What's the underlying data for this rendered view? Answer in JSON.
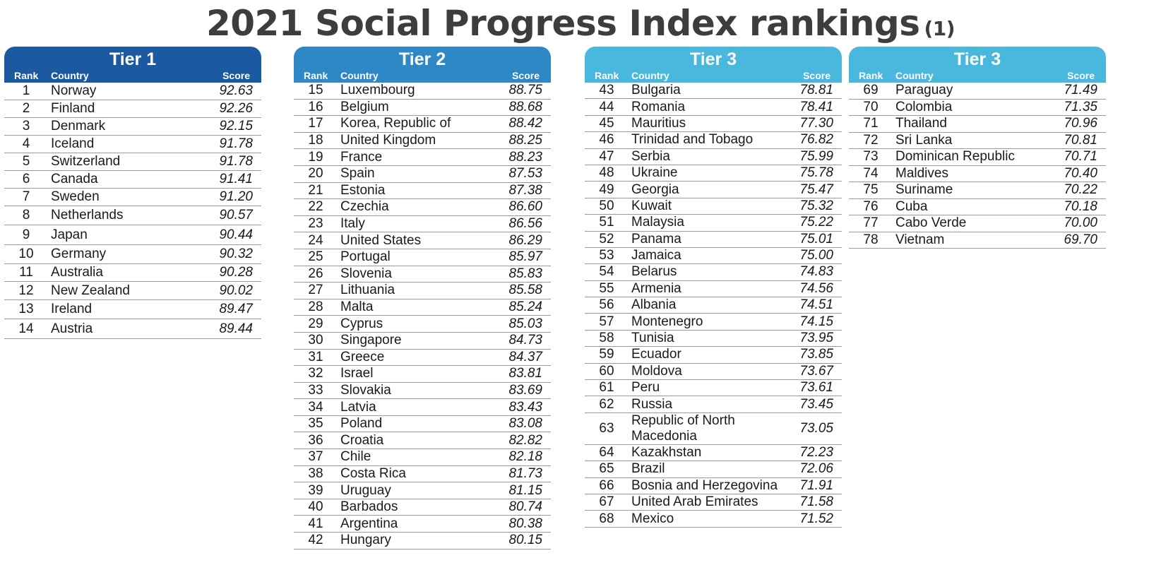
{
  "title": "2021 Social Progress Index rankings",
  "title_note": "(1)",
  "column_labels": {
    "rank": "Rank",
    "country": "Country",
    "score": "Score"
  },
  "tiers": [
    {
      "name": "Tier 1",
      "color": "#1b5aa0",
      "rows": [
        {
          "rank": "1",
          "country": "Norway",
          "score": "92.63"
        },
        {
          "rank": "2",
          "country": "Finland",
          "score": "92.26"
        },
        {
          "rank": "3",
          "country": "Denmark",
          "score": "92.15"
        },
        {
          "rank": "4",
          "country": "Iceland",
          "score": "91.78"
        },
        {
          "rank": "5",
          "country": "Switzerland",
          "score": "91.78"
        },
        {
          "rank": "6",
          "country": "Canada",
          "score": "91.41"
        },
        {
          "rank": "7",
          "country": "Sweden",
          "score": "91.20"
        },
        {
          "rank": "8",
          "country": "Netherlands",
          "score": "90.57"
        },
        {
          "rank": "9",
          "country": "Japan",
          "score": "90.44"
        },
        {
          "rank": "10",
          "country": "Germany",
          "score": "90.32"
        },
        {
          "rank": "11",
          "country": "Australia",
          "score": "90.28"
        },
        {
          "rank": "12",
          "country": "New Zealand",
          "score": "90.02"
        },
        {
          "rank": "13",
          "country": "Ireland",
          "score": "89.47"
        },
        {
          "rank": "14",
          "country": "Austria",
          "score": "89.44"
        }
      ]
    },
    {
      "name": "Tier 2",
      "color": "#2f88c6",
      "rows": [
        {
          "rank": "15",
          "country": "Luxembourg",
          "score": "88.75"
        },
        {
          "rank": "16",
          "country": "Belgium",
          "score": "88.68"
        },
        {
          "rank": "17",
          "country": "Korea, Republic of",
          "score": "88.42"
        },
        {
          "rank": "18",
          "country": "United Kingdom",
          "score": "88.25"
        },
        {
          "rank": "19",
          "country": "France",
          "score": "88.23"
        },
        {
          "rank": "20",
          "country": "Spain",
          "score": "87.53"
        },
        {
          "rank": "21",
          "country": "Estonia",
          "score": "87.38"
        },
        {
          "rank": "22",
          "country": "Czechia",
          "score": "86.60"
        },
        {
          "rank": "23",
          "country": "Italy",
          "score": "86.56"
        },
        {
          "rank": "24",
          "country": "United States",
          "score": "86.29"
        },
        {
          "rank": "25",
          "country": "Portugal",
          "score": "85.97"
        },
        {
          "rank": "26",
          "country": "Slovenia",
          "score": "85.83"
        },
        {
          "rank": "27",
          "country": "Lithuania",
          "score": "85.58"
        },
        {
          "rank": "28",
          "country": "Malta",
          "score": "85.24"
        },
        {
          "rank": "29",
          "country": "Cyprus",
          "score": "85.03"
        },
        {
          "rank": "30",
          "country": "Singapore",
          "score": "84.73"
        },
        {
          "rank": "31",
          "country": "Greece",
          "score": "84.37"
        },
        {
          "rank": "32",
          "country": "Israel",
          "score": "83.81"
        },
        {
          "rank": "33",
          "country": "Slovakia",
          "score": "83.69"
        },
        {
          "rank": "34",
          "country": "Latvia",
          "score": "83.43"
        },
        {
          "rank": "35",
          "country": "Poland",
          "score": "83.08"
        },
        {
          "rank": "36",
          "country": "Croatia",
          "score": "82.82"
        },
        {
          "rank": "37",
          "country": "Chile",
          "score": "82.18"
        },
        {
          "rank": "38",
          "country": "Costa Rica",
          "score": "81.73"
        },
        {
          "rank": "39",
          "country": "Uruguay",
          "score": "81.15"
        },
        {
          "rank": "40",
          "country": "Barbados",
          "score": "80.74"
        },
        {
          "rank": "41",
          "country": "Argentina",
          "score": "80.38"
        },
        {
          "rank": "42",
          "country": "Hungary",
          "score": "80.15"
        }
      ]
    },
    {
      "name": "Tier 3",
      "color": "#4ab8dc",
      "rows": [
        {
          "rank": "43",
          "country": "Bulgaria",
          "score": "78.81"
        },
        {
          "rank": "44",
          "country": "Romania",
          "score": "78.41"
        },
        {
          "rank": "45",
          "country": "Mauritius",
          "score": "77.30"
        },
        {
          "rank": "46",
          "country": "Trinidad and Tobago",
          "score": "76.82"
        },
        {
          "rank": "47",
          "country": "Serbia",
          "score": "75.99"
        },
        {
          "rank": "48",
          "country": "Ukraine",
          "score": "75.78"
        },
        {
          "rank": "49",
          "country": "Georgia",
          "score": "75.47"
        },
        {
          "rank": "50",
          "country": "Kuwait",
          "score": "75.32"
        },
        {
          "rank": "51",
          "country": "Malaysia",
          "score": "75.22"
        },
        {
          "rank": "52",
          "country": "Panama",
          "score": "75.01"
        },
        {
          "rank": "53",
          "country": "Jamaica",
          "score": "75.00"
        },
        {
          "rank": "54",
          "country": "Belarus",
          "score": "74.83"
        },
        {
          "rank": "55",
          "country": "Armenia",
          "score": "74.56"
        },
        {
          "rank": "56",
          "country": "Albania",
          "score": "74.51"
        },
        {
          "rank": "57",
          "country": "Montenegro",
          "score": "74.15"
        },
        {
          "rank": "58",
          "country": "Tunisia",
          "score": "73.95"
        },
        {
          "rank": "59",
          "country": "Ecuador",
          "score": "73.85"
        },
        {
          "rank": "60",
          "country": "Moldova",
          "score": "73.67"
        },
        {
          "rank": "61",
          "country": "Peru",
          "score": "73.61"
        },
        {
          "rank": "62",
          "country": "Russia",
          "score": "73.45"
        },
        {
          "rank": "63",
          "country": "Republic of North Macedonia",
          "score": "73.05"
        },
        {
          "rank": "64",
          "country": "Kazakhstan",
          "score": "72.23"
        },
        {
          "rank": "65",
          "country": "Brazil",
          "score": "72.06"
        },
        {
          "rank": "66",
          "country": "Bosnia and Herzegovina",
          "score": "71.91"
        },
        {
          "rank": "67",
          "country": "United Arab Emirates",
          "score": "71.58"
        },
        {
          "rank": "68",
          "country": "Mexico",
          "score": "71.52"
        }
      ]
    },
    {
      "name": "Tier 3",
      "color": "#4ab8dc",
      "rows": [
        {
          "rank": "69",
          "country": "Paraguay",
          "score": "71.49"
        },
        {
          "rank": "70",
          "country": "Colombia",
          "score": "71.35"
        },
        {
          "rank": "71",
          "country": "Thailand",
          "score": "70.96"
        },
        {
          "rank": "72",
          "country": "Sri Lanka",
          "score": "70.81"
        },
        {
          "rank": "73",
          "country": "Dominican Republic",
          "score": "70.71"
        },
        {
          "rank": "74",
          "country": "Maldives",
          "score": "70.40"
        },
        {
          "rank": "75",
          "country": "Suriname",
          "score": "70.22"
        },
        {
          "rank": "76",
          "country": "Cuba",
          "score": "70.18"
        },
        {
          "rank": "77",
          "country": "Cabo Verde",
          "score": "70.00"
        },
        {
          "rank": "78",
          "country": "Vietnam",
          "score": "69.70"
        }
      ]
    }
  ]
}
